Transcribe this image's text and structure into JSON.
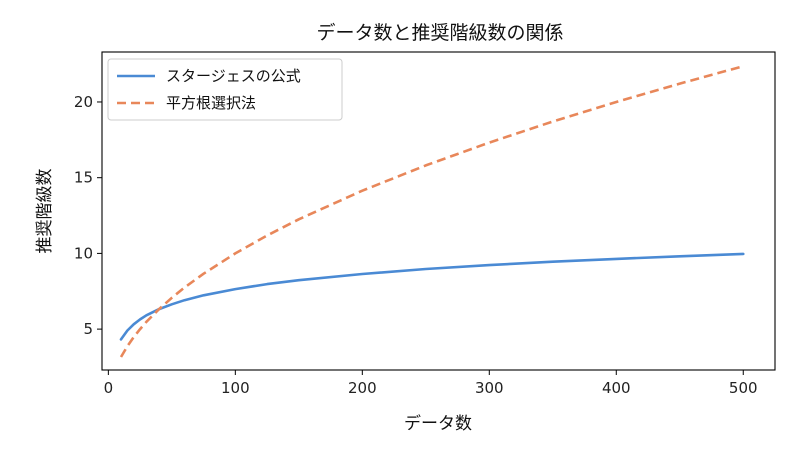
{
  "chart_data": {
    "type": "line",
    "title": "データ数と推奨階級数の関係",
    "xlabel": "データ数",
    "ylabel": "推奨階級数",
    "xlim": [
      -5,
      525
    ],
    "ylim": [
      2.3,
      23.3
    ],
    "xticks": [
      0,
      100,
      200,
      300,
      400,
      500
    ],
    "yticks": [
      5,
      10,
      15,
      20
    ],
    "grid": false,
    "legend_position": "top-left",
    "x": [
      10,
      15,
      20,
      25,
      30,
      40,
      50,
      60,
      75,
      100,
      125,
      150,
      200,
      250,
      300,
      350,
      400,
      450,
      500
    ],
    "series": [
      {
        "name": "スタージェスの公式",
        "color": "#4a8ad4",
        "dash": "solid",
        "values": [
          4.32,
          4.91,
          5.32,
          5.64,
          5.91,
          6.32,
          6.64,
          6.91,
          7.23,
          7.64,
          7.97,
          8.23,
          8.64,
          8.97,
          9.23,
          9.45,
          9.64,
          9.81,
          9.97
        ]
      },
      {
        "name": "平方根選択法",
        "color": "#e8875a",
        "dash": "dashed",
        "values": [
          3.16,
          3.87,
          4.47,
          5.0,
          5.48,
          6.32,
          7.07,
          7.75,
          8.66,
          10.0,
          11.18,
          12.25,
          14.14,
          15.81,
          17.32,
          18.71,
          20.0,
          21.21,
          22.36
        ]
      }
    ]
  }
}
